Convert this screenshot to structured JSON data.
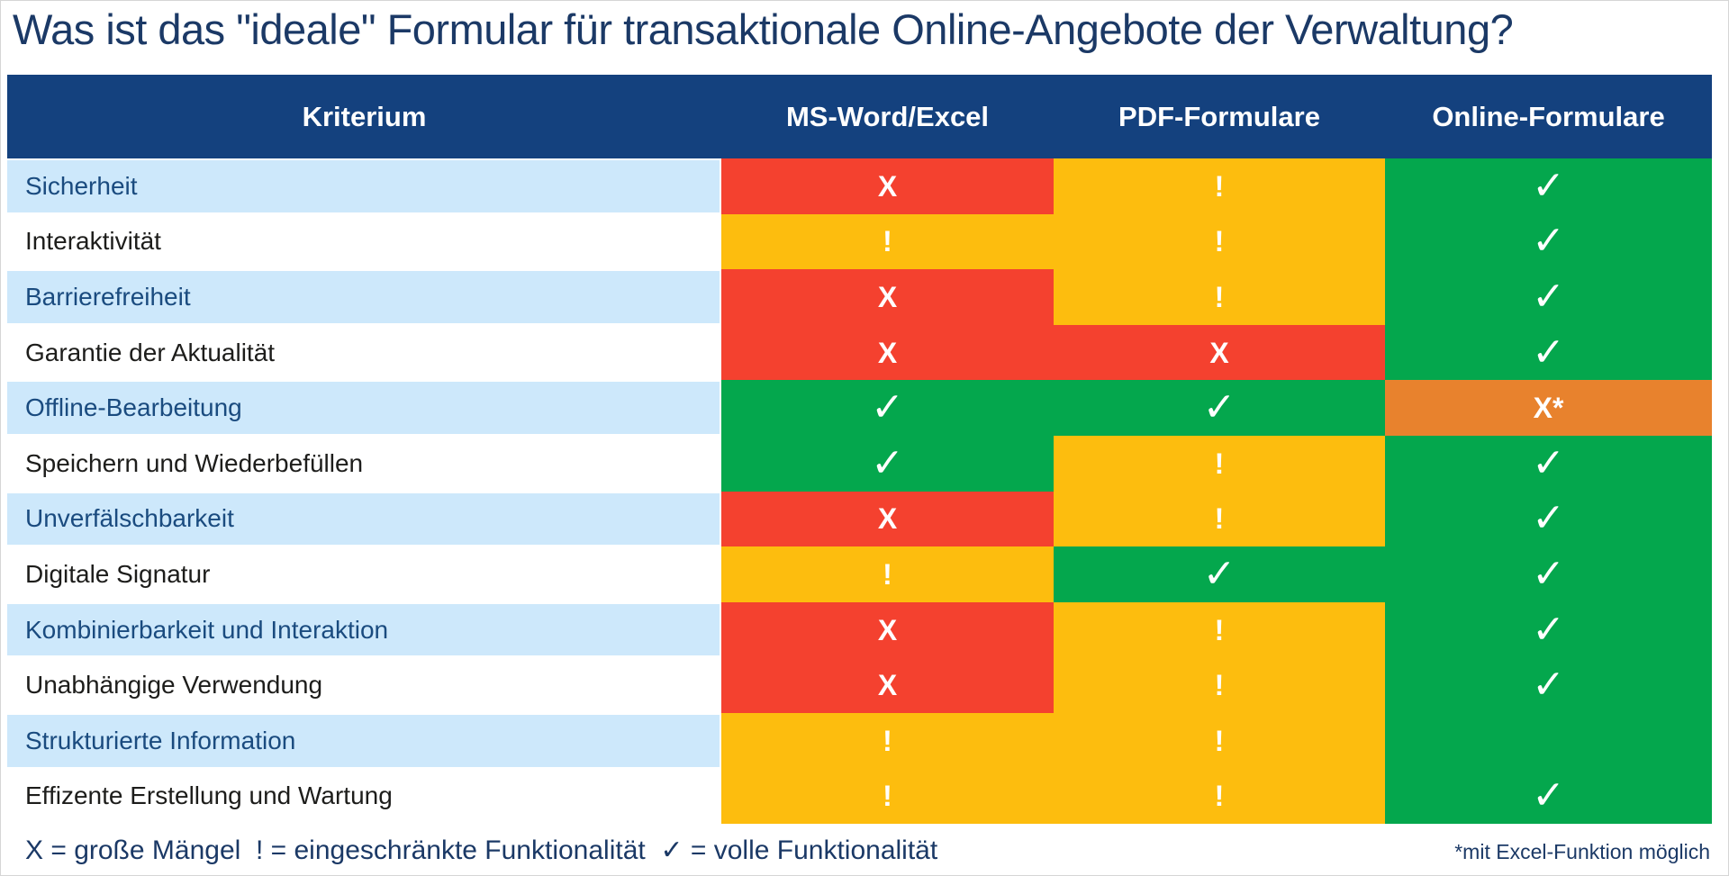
{
  "title": "Was ist das \"ideale\" Formular für transaktionale Online-Angebote der Verwaltung?",
  "table": {
    "columns": [
      "Kriterium",
      "MS-Word/Excel",
      "PDF-Formulare",
      "Online-Formulare"
    ],
    "rows": [
      {
        "label": "Sicherheit",
        "cells": [
          {
            "status": "bad",
            "symbol": "X"
          },
          {
            "status": "limited",
            "symbol": "!"
          },
          {
            "status": "full",
            "symbol": "✓"
          }
        ]
      },
      {
        "label": "Interaktivität",
        "cells": [
          {
            "status": "limited",
            "symbol": "!"
          },
          {
            "status": "limited",
            "symbol": "!"
          },
          {
            "status": "full",
            "symbol": "✓"
          }
        ]
      },
      {
        "label": "Barrierefreiheit",
        "cells": [
          {
            "status": "bad",
            "symbol": "X"
          },
          {
            "status": "limited",
            "symbol": "!"
          },
          {
            "status": "full",
            "symbol": "✓"
          }
        ]
      },
      {
        "label": "Garantie der Aktualität",
        "cells": [
          {
            "status": "bad",
            "symbol": "X"
          },
          {
            "status": "bad",
            "symbol": "X"
          },
          {
            "status": "full",
            "symbol": "✓"
          }
        ]
      },
      {
        "label": "Offline-Bearbeitung",
        "cells": [
          {
            "status": "full",
            "symbol": "✓"
          },
          {
            "status": "full",
            "symbol": "✓"
          },
          {
            "status": "bad_note",
            "symbol": "X*"
          }
        ]
      },
      {
        "label": "Speichern und Wiederbefüllen",
        "cells": [
          {
            "status": "full",
            "symbol": "✓"
          },
          {
            "status": "limited",
            "symbol": "!"
          },
          {
            "status": "full",
            "symbol": "✓"
          }
        ]
      },
      {
        "label": "Unverfälschbarkeit",
        "cells": [
          {
            "status": "bad",
            "symbol": "X"
          },
          {
            "status": "limited",
            "symbol": "!"
          },
          {
            "status": "full",
            "symbol": "✓"
          }
        ]
      },
      {
        "label": "Digitale Signatur",
        "cells": [
          {
            "status": "limited",
            "symbol": "!"
          },
          {
            "status": "full",
            "symbol": "✓"
          },
          {
            "status": "full",
            "symbol": "✓"
          }
        ]
      },
      {
        "label": "Kombinierbarkeit und Interaktion",
        "cells": [
          {
            "status": "bad",
            "symbol": "X"
          },
          {
            "status": "limited",
            "symbol": "!"
          },
          {
            "status": "full",
            "symbol": "✓"
          }
        ]
      },
      {
        "label": "Unabhängige Verwendung",
        "cells": [
          {
            "status": "bad",
            "symbol": "X"
          },
          {
            "status": "limited",
            "symbol": "!"
          },
          {
            "status": "full",
            "symbol": "✓"
          }
        ]
      },
      {
        "label": "Strukturierte Information",
        "cells": [
          {
            "status": "limited",
            "symbol": "!"
          },
          {
            "status": "limited",
            "symbol": "!"
          },
          {
            "status": "full",
            "symbol": ""
          }
        ]
      },
      {
        "label": "Effizente Erstellung und Wartung",
        "cells": [
          {
            "status": "limited",
            "symbol": "!"
          },
          {
            "status": "limited",
            "symbol": "!"
          },
          {
            "status": "full",
            "symbol": "✓"
          }
        ]
      }
    ]
  },
  "legend": {
    "text": "X = große Mängel  ! = eingeschränkte Funktionalität  ✓ = volle Funktionalität",
    "footnote": "*mit Excel-Funktion möglich"
  },
  "colors": {
    "bad": "#f4412f",
    "limited": "#fdbd0e",
    "full": "#04a74d",
    "bad_note": "#e8822d",
    "header_bg": "#14417e",
    "row_alt_bg": "#cde8fb",
    "navy_text": "#1b3966",
    "label_navy": "#1a4b7f"
  },
  "chart_data": {
    "type": "table",
    "title": "Was ist das \"ideale\" Formular für transaktionale Online-Angebote der Verwaltung?",
    "columns": [
      "Kriterium",
      "MS-Word/Excel",
      "PDF-Formulare",
      "Online-Formulare"
    ],
    "rows": [
      [
        "Sicherheit",
        "X",
        "!",
        "✓"
      ],
      [
        "Interaktivität",
        "!",
        "!",
        "✓"
      ],
      [
        "Barrierefreiheit",
        "X",
        "!",
        "✓"
      ],
      [
        "Garantie der Aktualität",
        "X",
        "X",
        "✓"
      ],
      [
        "Offline-Bearbeitung",
        "✓",
        "✓",
        "X*"
      ],
      [
        "Speichern und Wiederbefüllen",
        "✓",
        "!",
        "✓"
      ],
      [
        "Unverfälschbarkeit",
        "X",
        "!",
        "✓"
      ],
      [
        "Digitale Signatur",
        "!",
        "✓",
        "✓"
      ],
      [
        "Kombinierbarkeit und Interaktion",
        "X",
        "!",
        "✓"
      ],
      [
        "Unabhängige Verwendung",
        "X",
        "!",
        "✓"
      ],
      [
        "Strukturierte Information",
        "!",
        "!",
        ""
      ],
      [
        "Effizente Erstellung und Wartung",
        "!",
        "!",
        "✓"
      ]
    ],
    "legend": "X = große Mängel, ! = eingeschränkte Funktionalität, ✓ = volle Funktionalität, X* = mit Excel-Funktion möglich"
  }
}
